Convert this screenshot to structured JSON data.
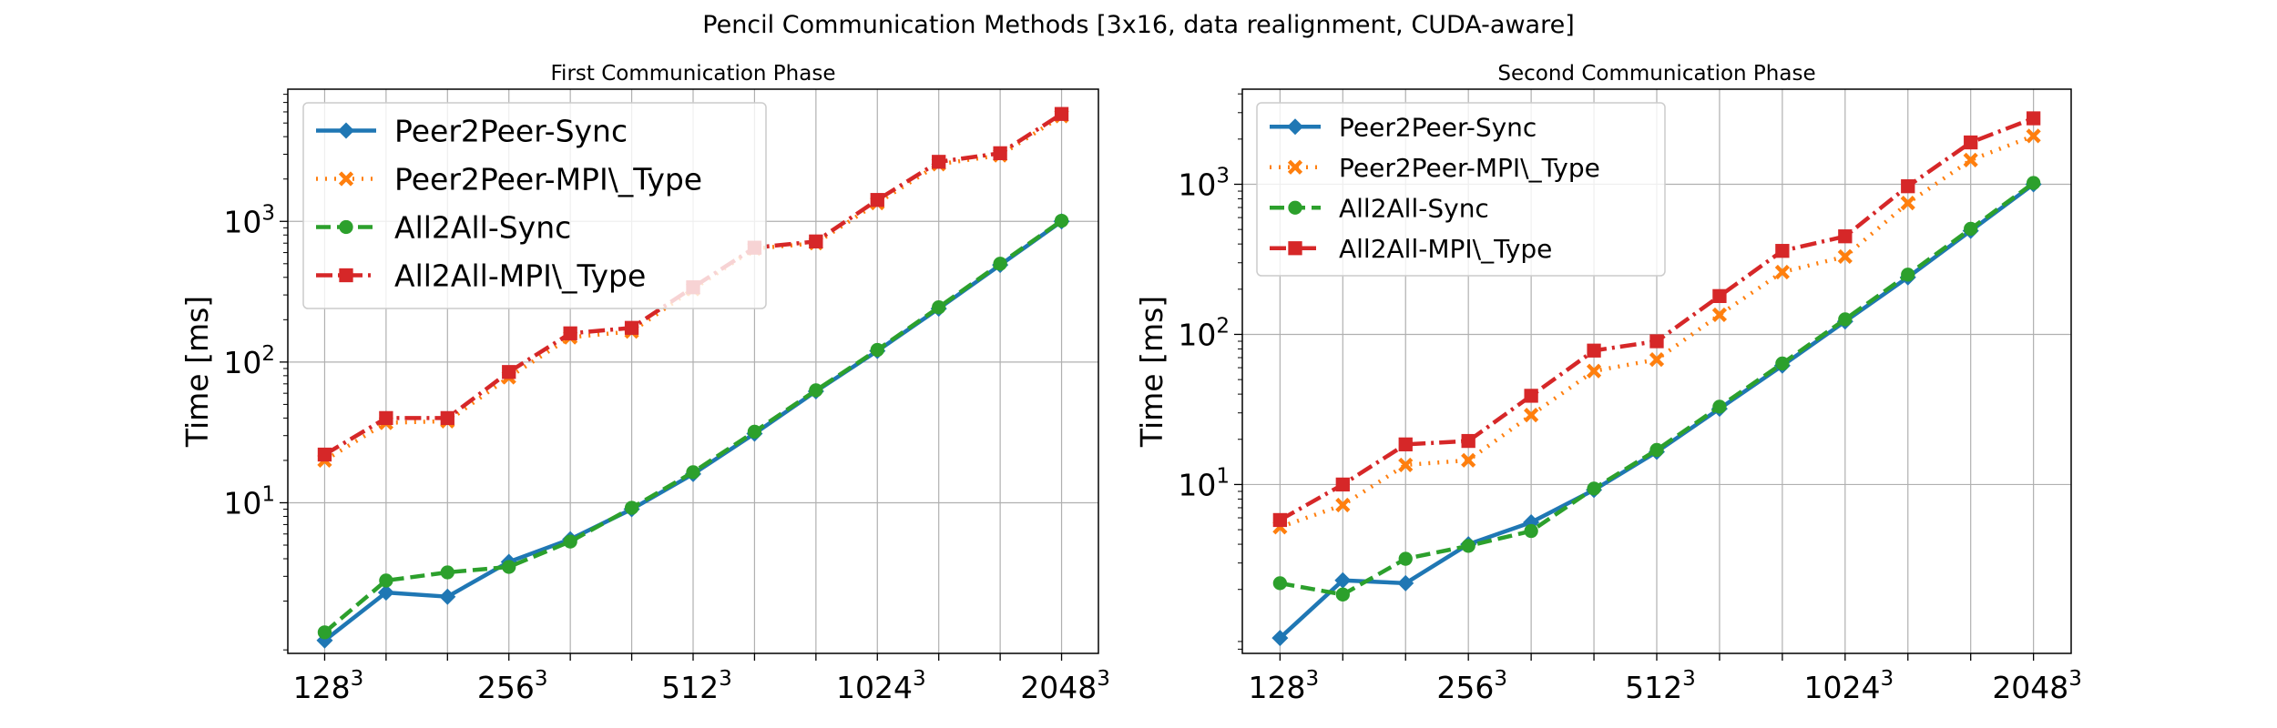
{
  "figure_title": "Pencil Communication Methods [3x16, data realignment, CUDA-aware]",
  "colors": {
    "Peer2Peer-Sync": "#1f77b4",
    "Peer2Peer-MPI\\_Type": "#ff7f0e",
    "All2All-Sync": "#2ca02c",
    "All2All-MPI\\_Type": "#d62728",
    "grid": "#b0b0b0"
  },
  "chart_data": [
    {
      "type": "line",
      "title": "First Communication Phase",
      "xlabel": "",
      "ylabel": "Time [ms]",
      "yscale": "log",
      "ylim": [
        0.85,
        8700
      ],
      "xlim": [
        -0.6,
        12.6
      ],
      "grid": true,
      "legend": "top-left",
      "x": [
        0,
        1,
        2,
        3,
        4,
        5,
        6,
        7,
        8,
        9,
        10,
        11,
        12
      ],
      "xticks": [
        {
          "x": 0,
          "base": "128",
          "exp": "3"
        },
        {
          "x": 3,
          "base": "256",
          "exp": "3"
        },
        {
          "x": 6,
          "base": "512",
          "exp": "3"
        },
        {
          "x": 9,
          "base": "1024",
          "exp": "3"
        },
        {
          "x": 12,
          "base": "2048",
          "exp": "3"
        }
      ],
      "yticks": [
        {
          "value": 10,
          "base": "10",
          "exp": "1"
        },
        {
          "value": 100,
          "base": "10",
          "exp": "2"
        },
        {
          "value": 1000,
          "base": "10",
          "exp": "3"
        }
      ],
      "series": [
        {
          "name": "Peer2Peer-Sync",
          "style": "solid",
          "marker": "diamond",
          "values": [
            1.05,
            2.3,
            2.15,
            3.8,
            5.5,
            9.0,
            16.0,
            31.0,
            62.0,
            120.0,
            240.0,
            490.0,
            1000.0
          ]
        },
        {
          "name": "Peer2Peer-MPI\\_Type",
          "style": "dotted",
          "marker": "x-filled",
          "values": [
            20.0,
            37.0,
            38.0,
            78.0,
            150.0,
            165.0,
            330.0,
            640.0,
            700.0,
            1350.0,
            2550.0,
            2950.0,
            5600.0
          ]
        },
        {
          "name": "All2All-Sync",
          "style": "dashed",
          "marker": "circle",
          "values": [
            1.2,
            2.8,
            3.2,
            3.5,
            5.3,
            9.2,
            16.5,
            32.0,
            63.0,
            122.0,
            245.0,
            500.0,
            1010.0
          ]
        },
        {
          "name": "All2All-MPI\\_Type",
          "style": "dashdot",
          "marker": "square",
          "values": [
            22.0,
            40.0,
            40.0,
            85.0,
            160.0,
            175.0,
            340.0,
            650.0,
            720.0,
            1420.0,
            2650.0,
            3050.0,
            5800.0
          ]
        }
      ]
    },
    {
      "type": "line",
      "title": "Second Communication Phase",
      "xlabel": "",
      "ylabel": "Time [ms]",
      "yscale": "log",
      "ylim": [
        0.75,
        4300
      ],
      "xlim": [
        -0.6,
        12.6
      ],
      "grid": true,
      "legend": "top-left",
      "x": [
        0,
        1,
        2,
        3,
        4,
        5,
        6,
        7,
        8,
        9,
        10,
        11,
        12
      ],
      "xticks": [
        {
          "x": 0,
          "base": "128",
          "exp": "3"
        },
        {
          "x": 3,
          "base": "256",
          "exp": "3"
        },
        {
          "x": 6,
          "base": "512",
          "exp": "3"
        },
        {
          "x": 9,
          "base": "1024",
          "exp": "3"
        },
        {
          "x": 12,
          "base": "2048",
          "exp": "3"
        }
      ],
      "yticks": [
        {
          "value": 10,
          "base": "10",
          "exp": "1"
        },
        {
          "value": 100,
          "base": "10",
          "exp": "2"
        },
        {
          "value": 1000,
          "base": "10",
          "exp": "3"
        }
      ],
      "series": [
        {
          "name": "Peer2Peer-Sync",
          "style": "solid",
          "marker": "diamond",
          "values": [
            0.95,
            2.3,
            2.2,
            4.0,
            5.6,
            9.2,
            16.5,
            32.0,
            62.0,
            122.0,
            240.0,
            490.0,
            1000.0
          ]
        },
        {
          "name": "Peer2Peer-MPI\\_Type",
          "style": "dotted",
          "marker": "x-filled",
          "values": [
            5.2,
            7.3,
            13.5,
            14.5,
            29.0,
            57.0,
            68.0,
            135.0,
            260.0,
            330.0,
            750.0,
            1450.0,
            2100.0
          ]
        },
        {
          "name": "All2All-Sync",
          "style": "dashed",
          "marker": "circle",
          "values": [
            2.2,
            1.85,
            3.2,
            3.9,
            4.9,
            9.4,
            17.0,
            33.0,
            64.0,
            126.0,
            250.0,
            505.0,
            1020.0
          ]
        },
        {
          "name": "All2All-MPI\\_Type",
          "style": "dashdot",
          "marker": "square",
          "values": [
            5.8,
            10.0,
            18.5,
            19.5,
            39.0,
            78.0,
            90.0,
            180.0,
            360.0,
            450.0,
            970.0,
            1900.0,
            2750.0
          ]
        }
      ]
    }
  ]
}
